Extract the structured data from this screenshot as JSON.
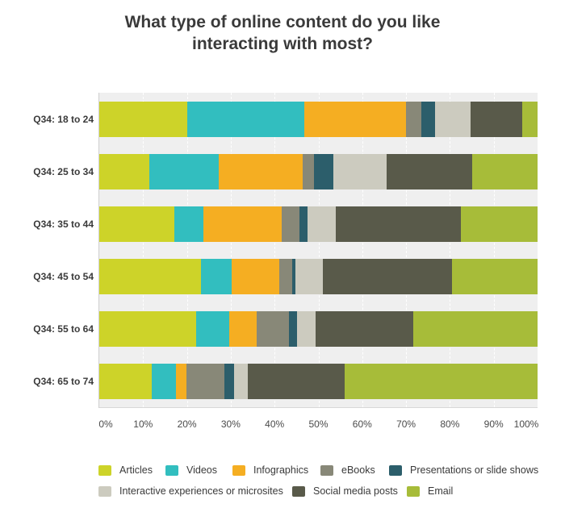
{
  "chart_data": {
    "type": "bar",
    "orientation": "horizontal",
    "stacked": true,
    "title": "What type of online content do you like interacting with most?",
    "title_lines": [
      "What type of online content do you like",
      "interacting with most?"
    ],
    "xlabel": "",
    "ylabel": "",
    "xlim": [
      0,
      100
    ],
    "x_ticks": [
      "0%",
      "10%",
      "20%",
      "30%",
      "40%",
      "50%",
      "60%",
      "70%",
      "80%",
      "90%",
      "100%"
    ],
    "grid": true,
    "legend_position": "bottom",
    "categories": [
      "Q34: 18 to 24",
      "Q34: 25 to 34",
      "Q34: 35 to 44",
      "Q34: 45 to 54",
      "Q34: 55 to 64",
      "Q34: 65 to 74"
    ],
    "series": [
      {
        "name": "Articles",
        "color": "#CDD329",
        "values": [
          20,
          11.4,
          17.1,
          23.2,
          22.1,
          12.0
        ]
      },
      {
        "name": "Videos",
        "color": "#32BEBF",
        "values": [
          26.7,
          15.8,
          6.6,
          7.0,
          7.6,
          5.5
        ]
      },
      {
        "name": "Infographics",
        "color": "#F5AE22",
        "values": [
          23.2,
          19.2,
          18.0,
          10.9,
          6.3,
          2.4
        ]
      },
      {
        "name": "eBooks",
        "color": "#888878",
        "values": [
          3.5,
          2.6,
          3.9,
          2.9,
          7.2,
          8.7
        ]
      },
      {
        "name": "Presentations or slide shows",
        "color": "#2C5E6B",
        "values": [
          3.3,
          4.4,
          2.0,
          0.7,
          2.0,
          2.2
        ]
      },
      {
        "name": "Interactive experiences or microsites",
        "color": "#CCCBBF",
        "values": [
          8.1,
          12.2,
          6.4,
          6.3,
          4.1,
          3.1
        ]
      },
      {
        "name": "Social media posts",
        "color": "#595A4A",
        "values": [
          11.8,
          19.5,
          28.5,
          29.5,
          22.3,
          22.1
        ]
      },
      {
        "name": "Email",
        "color": "#A7BC39",
        "values": [
          3.4,
          14.9,
          17.5,
          19.5,
          28.4,
          44.0
        ]
      }
    ]
  },
  "legend": {
    "row1": [
      "Articles",
      "Videos",
      "Infographics",
      "eBooks",
      "Presentations or slide shows"
    ],
    "row2": [
      "Interactive experiences or microsites",
      "Social media posts",
      "Email"
    ]
  }
}
